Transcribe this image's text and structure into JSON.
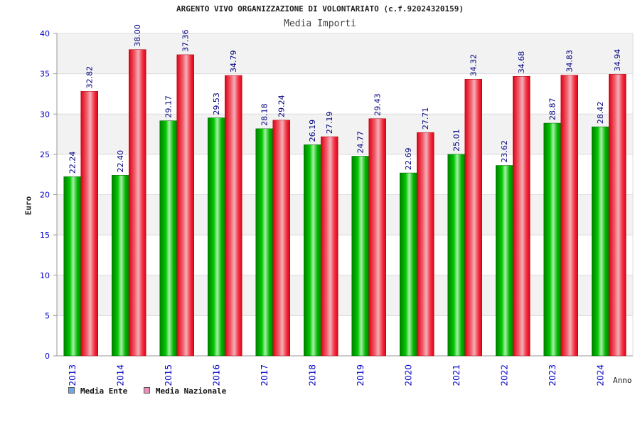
{
  "chart_data": {
    "type": "bar",
    "title": "ARGENTO VIVO ORGANIZZAZIONE DI VOLONTARIATO (c.f.92024320159)",
    "subtitle": "Media Importi",
    "xlabel": "Anno",
    "ylabel": "Euro",
    "ylim": [
      0,
      40
    ],
    "yticks": [
      0,
      5,
      10,
      15,
      20,
      25,
      30,
      35,
      40
    ],
    "categories": [
      "2013",
      "2014",
      "2015",
      "2016",
      "2017",
      "2018",
      "2019",
      "2020",
      "2021",
      "2022",
      "2023",
      "2024"
    ],
    "series": [
      {
        "name": "Media Ente",
        "values": [
          22.24,
          22.4,
          29.17,
          29.53,
          28.18,
          26.19,
          24.77,
          22.69,
          25.01,
          23.62,
          28.87,
          28.42
        ],
        "labels": [
          "22.24",
          "22.40",
          "29.17",
          "29.53",
          "28.18",
          "26.19",
          "24.77",
          "22.69",
          "25.01",
          "23.62",
          "28.87",
          "28.42"
        ],
        "color": "#00b000",
        "legend_color": "#6fa8e8"
      },
      {
        "name": "Media Nazionale",
        "values": [
          32.82,
          38.0,
          37.36,
          34.79,
          29.24,
          27.19,
          29.43,
          27.71,
          34.32,
          34.68,
          34.83,
          34.94
        ],
        "labels": [
          "32.82",
          "38.00",
          "37.36",
          "34.79",
          "29.24",
          "27.19",
          "29.43",
          "27.71",
          "34.32",
          "34.68",
          "34.83",
          "34.94"
        ],
        "color": "#f01020",
        "legend_color": "#e890b8"
      }
    ],
    "grid": true,
    "grid_bands": [
      "#f2f2f2",
      "#ffffff"
    ],
    "axis_text_color": "#0000cc",
    "value_label_color": "#000080",
    "legend_position": "bottom-left"
  }
}
